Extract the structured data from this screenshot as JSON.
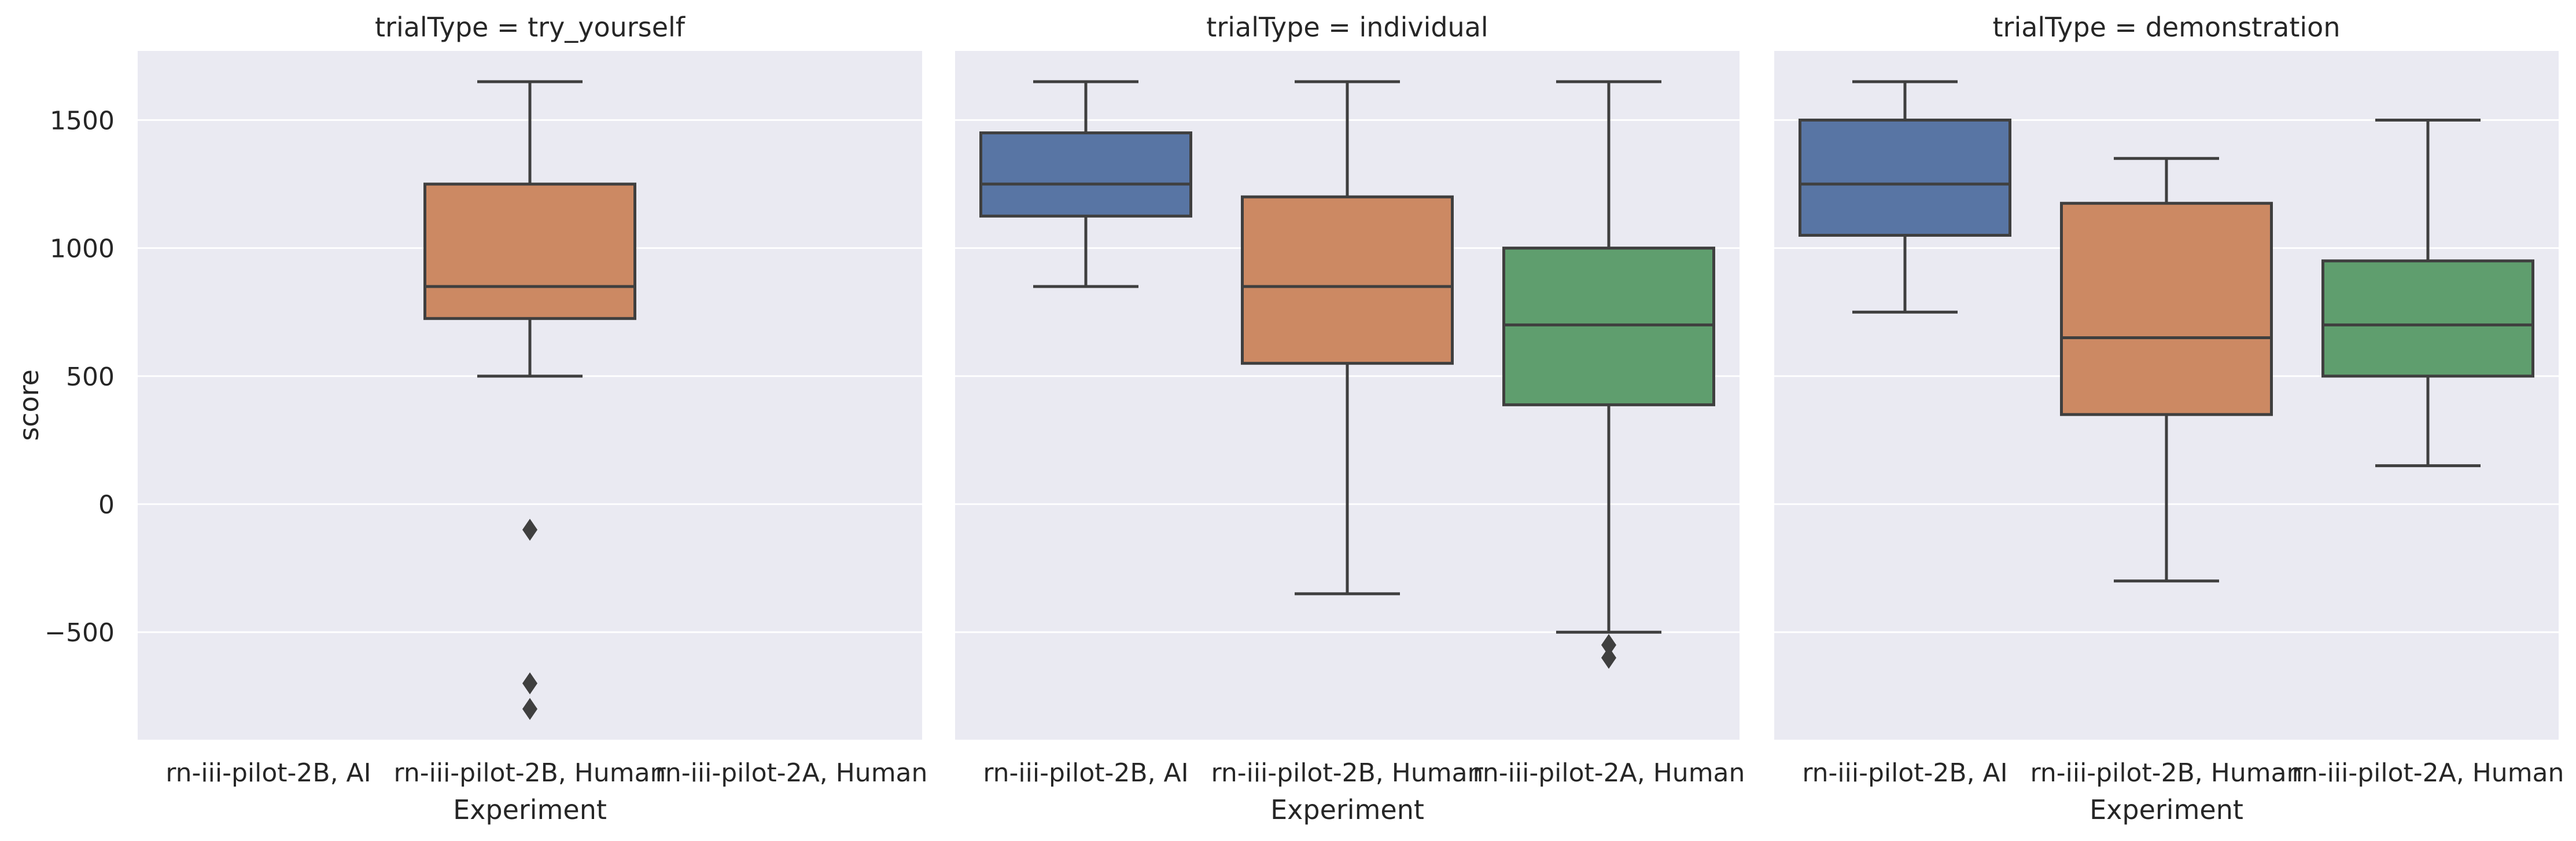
{
  "chart_data": {
    "type": "box",
    "ylabel": "score",
    "xlabel": "Experiment",
    "ylim": [
      -920,
      1770
    ],
    "yticks": [
      -500,
      0,
      500,
      1000,
      1500
    ],
    "ytick_labels": [
      "−500",
      "0",
      "500",
      "1000",
      "1500"
    ],
    "grid": true,
    "categories": [
      "rn-iii-pilot-2B, AI",
      "rn-iii-pilot-2B, Human",
      "rn-iii-pilot-2A, Human"
    ],
    "colors": [
      "#5875A4",
      "#CC8963",
      "#5F9E6E"
    ],
    "panels": [
      {
        "title": "trialType = try_yourself",
        "boxes": [
          null,
          {
            "whislo": 500,
            "q1": 725,
            "med": 850,
            "q3": 1250,
            "whishi": 1650,
            "fliers": [
              -100,
              -700,
              -800
            ]
          },
          null
        ]
      },
      {
        "title": "trialType = individual",
        "boxes": [
          {
            "whislo": 850,
            "q1": 1125,
            "med": 1250,
            "q3": 1450,
            "whishi": 1650,
            "fliers": []
          },
          {
            "whislo": -350,
            "q1": 550,
            "med": 850,
            "q3": 1200,
            "whishi": 1650,
            "fliers": []
          },
          {
            "whislo": -500,
            "q1": 388,
            "med": 700,
            "q3": 1000,
            "whishi": 1650,
            "fliers": [
              -550,
              -600
            ]
          }
        ]
      },
      {
        "title": "trialType = demonstration",
        "boxes": [
          {
            "whislo": 750,
            "q1": 1050,
            "med": 1250,
            "q3": 1500,
            "whishi": 1650,
            "fliers": []
          },
          {
            "whislo": -300,
            "q1": 350,
            "med": 650,
            "q3": 1175,
            "whishi": 1350,
            "fliers": []
          },
          {
            "whislo": 150,
            "q1": 500,
            "med": 700,
            "q3": 950,
            "whishi": 1500,
            "fliers": []
          }
        ]
      }
    ]
  }
}
